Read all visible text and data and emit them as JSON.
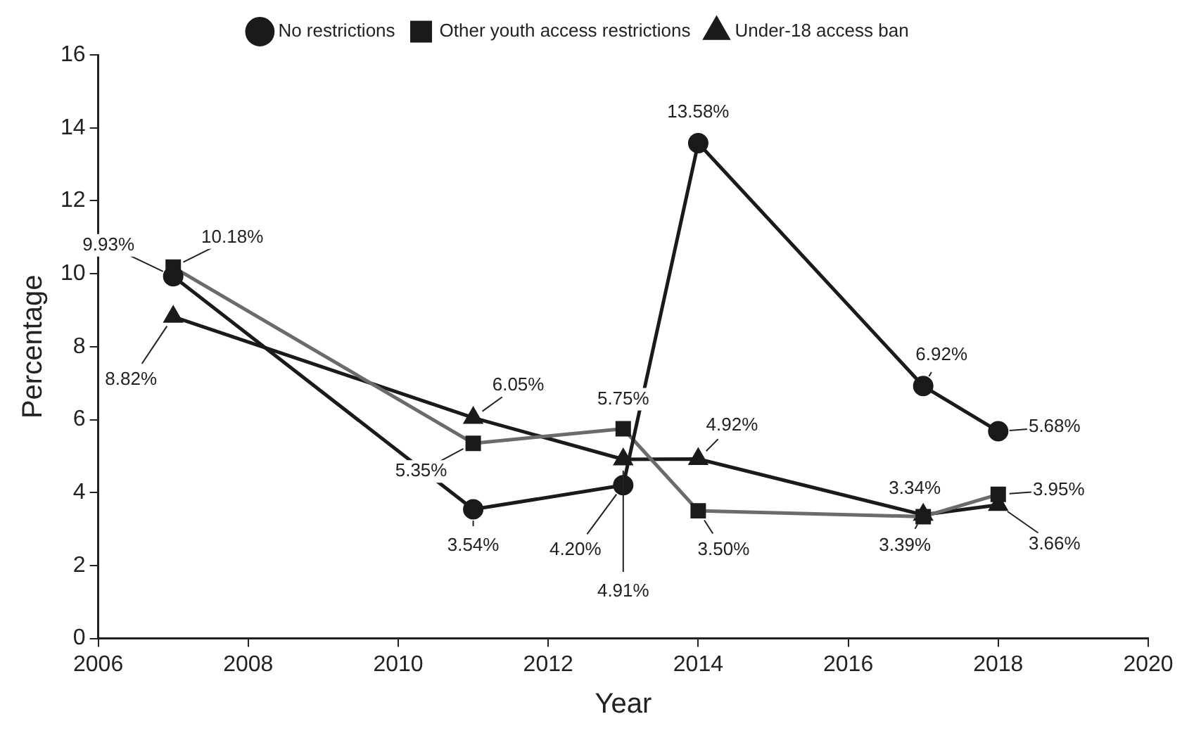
{
  "chart_data": {
    "type": "line",
    "xlabel": "Year",
    "ylabel": "Percentage",
    "xlim": [
      2006,
      2020
    ],
    "xticks": [
      2006,
      2008,
      2010,
      2012,
      2014,
      2016,
      2018,
      2020
    ],
    "ylim": [
      0,
      16
    ],
    "yticks": [
      0,
      2,
      4,
      6,
      8,
      10,
      12,
      14,
      16
    ],
    "grid": false,
    "legend": "top",
    "line_style": "solid",
    "series": [
      {
        "name": "No restrictions",
        "color": "#1a1a1a",
        "marker": "circle",
        "x": [
          2007,
          2011,
          2013,
          2014,
          2017,
          2018
        ],
        "values": [
          9.93,
          3.54,
          4.2,
          13.58,
          6.92,
          5.68
        ],
        "value_labels": [
          "9.93%",
          "3.54%",
          "4.20%",
          "13.58%",
          "6.92%",
          "5.68%"
        ]
      },
      {
        "name": "Other youth access restrictions",
        "color": "#6b6b6b",
        "marker": "square",
        "x": [
          2007,
          2011,
          2013,
          2014,
          2017,
          2018
        ],
        "values": [
          10.18,
          5.35,
          5.75,
          3.5,
          3.34,
          3.95
        ],
        "value_labels": [
          "10.18%",
          "5.35%",
          "5.75%",
          "3.50%",
          "3.34%",
          "3.95%"
        ]
      },
      {
        "name": "Under-18 access ban",
        "color": "#1a1a1a",
        "marker": "triangle",
        "x": [
          2007,
          2011,
          2013,
          2014,
          2017,
          2018
        ],
        "values": [
          8.82,
          6.05,
          4.91,
          4.92,
          3.39,
          3.66
        ],
        "value_labels": [
          "8.82%",
          "6.05%",
          "4.91%",
          "4.92%",
          "3.39%",
          "3.66%"
        ]
      }
    ]
  }
}
